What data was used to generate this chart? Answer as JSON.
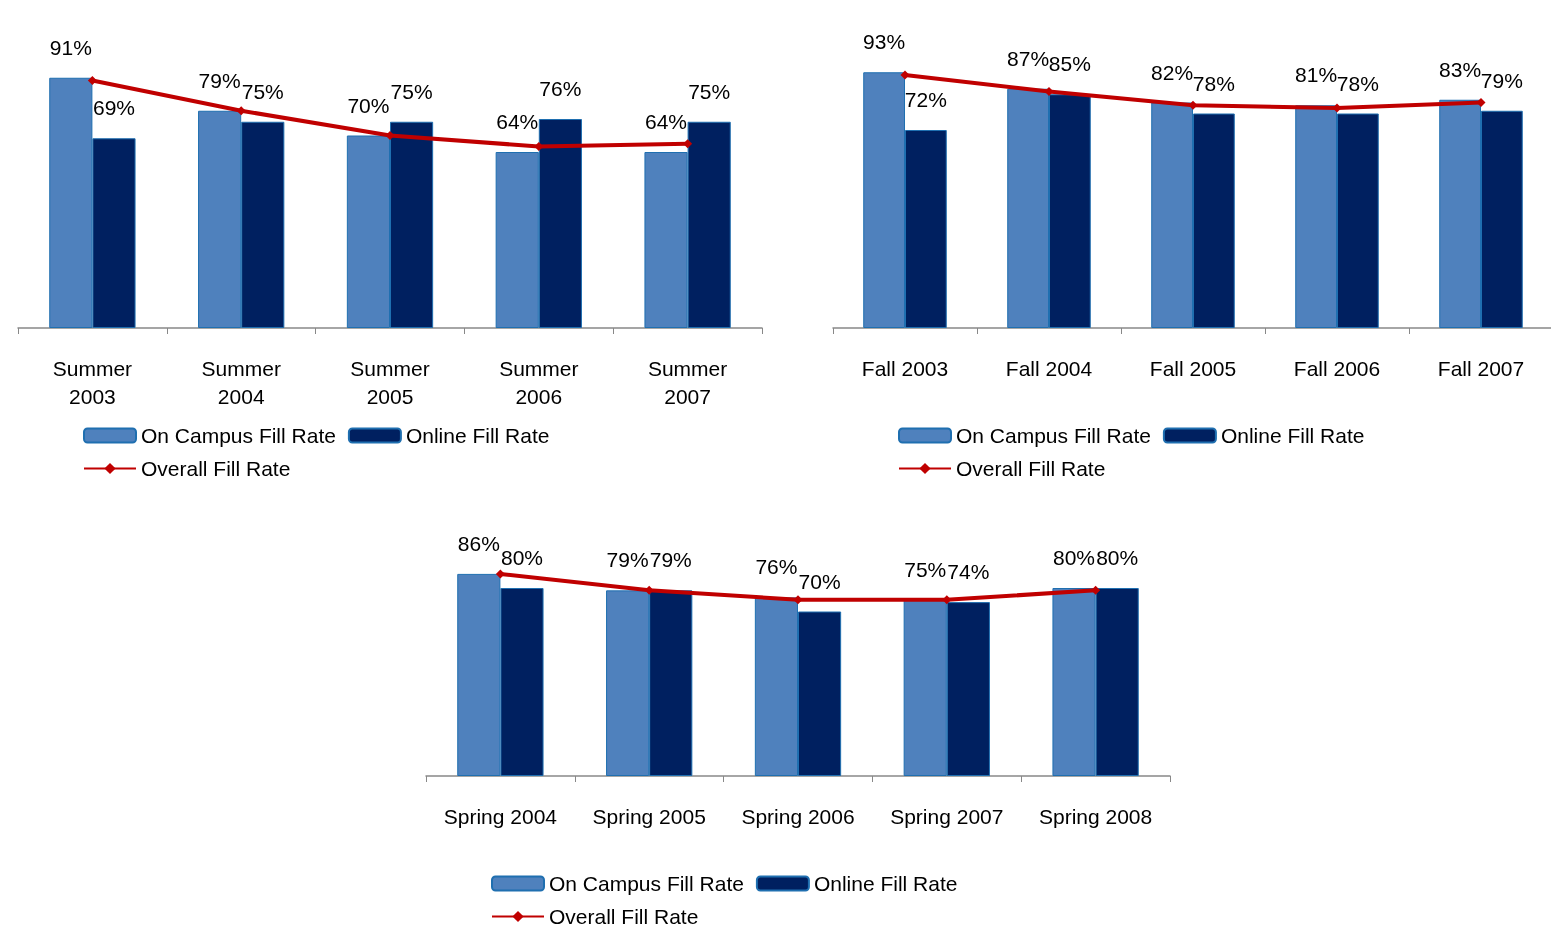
{
  "chart_data": [
    {
      "type": "bar",
      "categories": [
        "Summer\n2003",
        "Summer\n2004",
        "Summer\n2005",
        "Summer\n2006",
        "Summer\n2007"
      ],
      "legend": "bottom",
      "marker": "diamond",
      "series": [
        {
          "name": "On Campus Fill Rate",
          "color": "#4f81bd",
          "values": [
            91,
            79,
            70,
            64,
            64
          ],
          "value_labels": [
            "91%",
            "79%",
            "70%",
            "64%",
            "64%"
          ]
        },
        {
          "name": "Online Fill Rate",
          "color": "#002060",
          "values": [
            69,
            75,
            75,
            76,
            75
          ],
          "value_labels": [
            "69%",
            "75%",
            "75%",
            "76%",
            "75%"
          ]
        },
        {
          "name": "Overall Fill Rate",
          "type": "line",
          "color": "#c00000",
          "values": [
            90,
            79,
            70,
            66,
            67
          ]
        }
      ]
    },
    {
      "type": "bar",
      "categories": [
        "Fall 2003",
        "Fall 2004",
        "Fall 2005",
        "Fall 2006",
        "Fall 2007"
      ],
      "legend": "bottom",
      "marker": "diamond",
      "series": [
        {
          "name": "On Campus Fill Rate",
          "color": "#4f81bd",
          "values": [
            93,
            87,
            82,
            81,
            83
          ],
          "value_labels": [
            "93%",
            "87%",
            "82%",
            "81%",
            "83%"
          ]
        },
        {
          "name": "Online Fill Rate",
          "color": "#002060",
          "values": [
            72,
            85,
            78,
            78,
            79
          ],
          "value_labels": [
            "72%",
            "85%",
            "78%",
            "78%",
            "79%"
          ]
        },
        {
          "name": "Overall Fill Rate",
          "type": "line",
          "color": "#c00000",
          "values": [
            92,
            86,
            81,
            80,
            82
          ]
        }
      ]
    },
    {
      "type": "bar",
      "categories": [
        "Spring 2004",
        "Spring 2005",
        "Spring 2006",
        "Spring 2007",
        "Spring 2008"
      ],
      "legend": "bottom",
      "marker": "diamond",
      "series": [
        {
          "name": "On Campus Fill Rate",
          "color": "#4f81bd",
          "values": [
            86,
            79,
            76,
            75,
            80
          ],
          "value_labels": [
            "86%",
            "79%",
            "76%",
            "75%",
            "80%"
          ]
        },
        {
          "name": "Online Fill Rate",
          "color": "#002060",
          "values": [
            80,
            79,
            70,
            74,
            80
          ],
          "value_labels": [
            "80%",
            "79%",
            "70%",
            "74%",
            "80%"
          ]
        },
        {
          "name": "Overall Fill Rate",
          "type": "line",
          "color": "#c00000",
          "values": [
            86,
            79,
            75,
            75,
            79
          ]
        }
      ]
    }
  ]
}
